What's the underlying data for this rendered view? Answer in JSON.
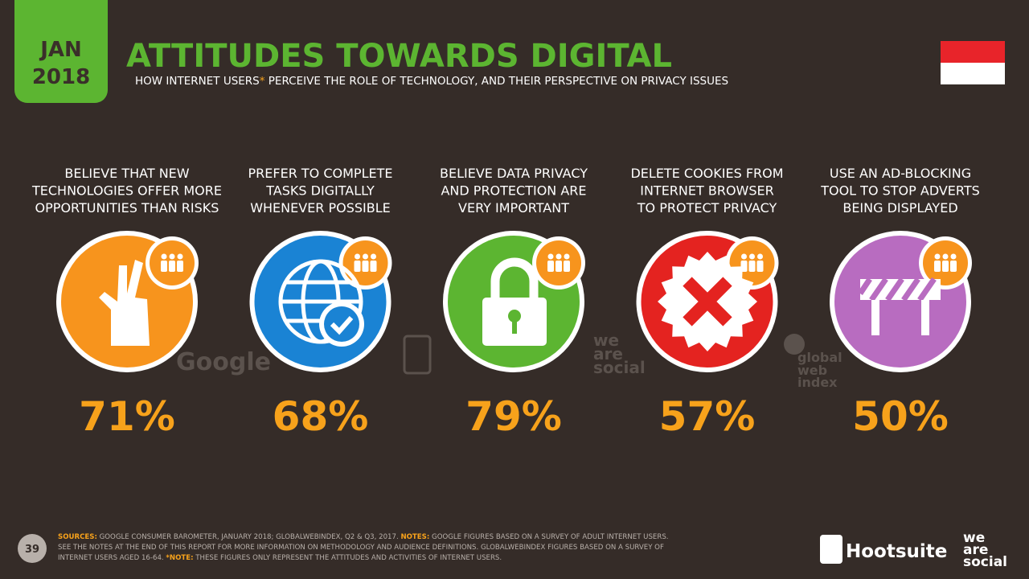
{
  "badge": {
    "month": "JAN",
    "year": "2018"
  },
  "header": {
    "title": "ATTITUDES TOWARDS DIGITAL",
    "subtitle_start": "HOW INTERNET USERS",
    "subtitle_mark": "*",
    "subtitle_end": " PERCEIVE THE ROLE OF TECHNOLOGY, AND THEIR PERSPECTIVE ON PRIVACY ISSUES"
  },
  "items": [
    {
      "label": [
        "BELIEVE THAT NEW",
        "TECHNOLOGIES OFFER MORE",
        "OPPORTUNITIES THAN RISKS"
      ],
      "value": "71%"
    },
    {
      "label": [
        "PREFER TO COMPLETE",
        "TASKS DIGITALLY",
        "WHENEVER POSSIBLE"
      ],
      "value": "68%"
    },
    {
      "label": [
        "BELIEVE DATA PRIVACY",
        "AND PROTECTION ARE",
        "VERY IMPORTANT"
      ],
      "value": "79%"
    },
    {
      "label": [
        "DELETE COOKIES FROM",
        "INTERNET BROWSER",
        "TO PROTECT PRIVACY"
      ],
      "value": "57%"
    },
    {
      "label": [
        "USE AN AD-BLOCKING",
        "TOOL TO STOP ADVERTS",
        "BEING DISPLAYED"
      ],
      "value": "50%"
    }
  ],
  "watermarks": {
    "google": "Google",
    "was": [
      "we",
      "are",
      "social"
    ],
    "gwi": [
      "global",
      "web",
      "index"
    ]
  },
  "footer": {
    "page": "39",
    "sources_label": "SOURCES:",
    "sources_text": " GOOGLE CONSUMER BAROMETER, JANUARY 2018; GLOBALWEBINDEX, Q2 & Q3, 2017. ",
    "notes_label": "NOTES:",
    "notes_text": " GOOGLE FIGURES BASED ON A SURVEY OF ADULT INTERNET USERS. SEE THE NOTES AT THE END OF THIS REPORT FOR MORE INFORMATION ON METHODOLOGY AND AUDIENCE DEFINITIONS. GLOBALWEBINDEX FIGURES BASED ON A SURVEY OF INTERNET USERS AGED 16-64. ",
    "note_label": "*NOTE:",
    "note_text": " THESE FIGURES ONLY REPRESENT THE ATTITUDES AND ACTIVITIES OF INTERNET USERS."
  },
  "logos": {
    "hootsuite": "Hootsuite",
    "was": [
      "we",
      "are",
      "social"
    ]
  }
}
